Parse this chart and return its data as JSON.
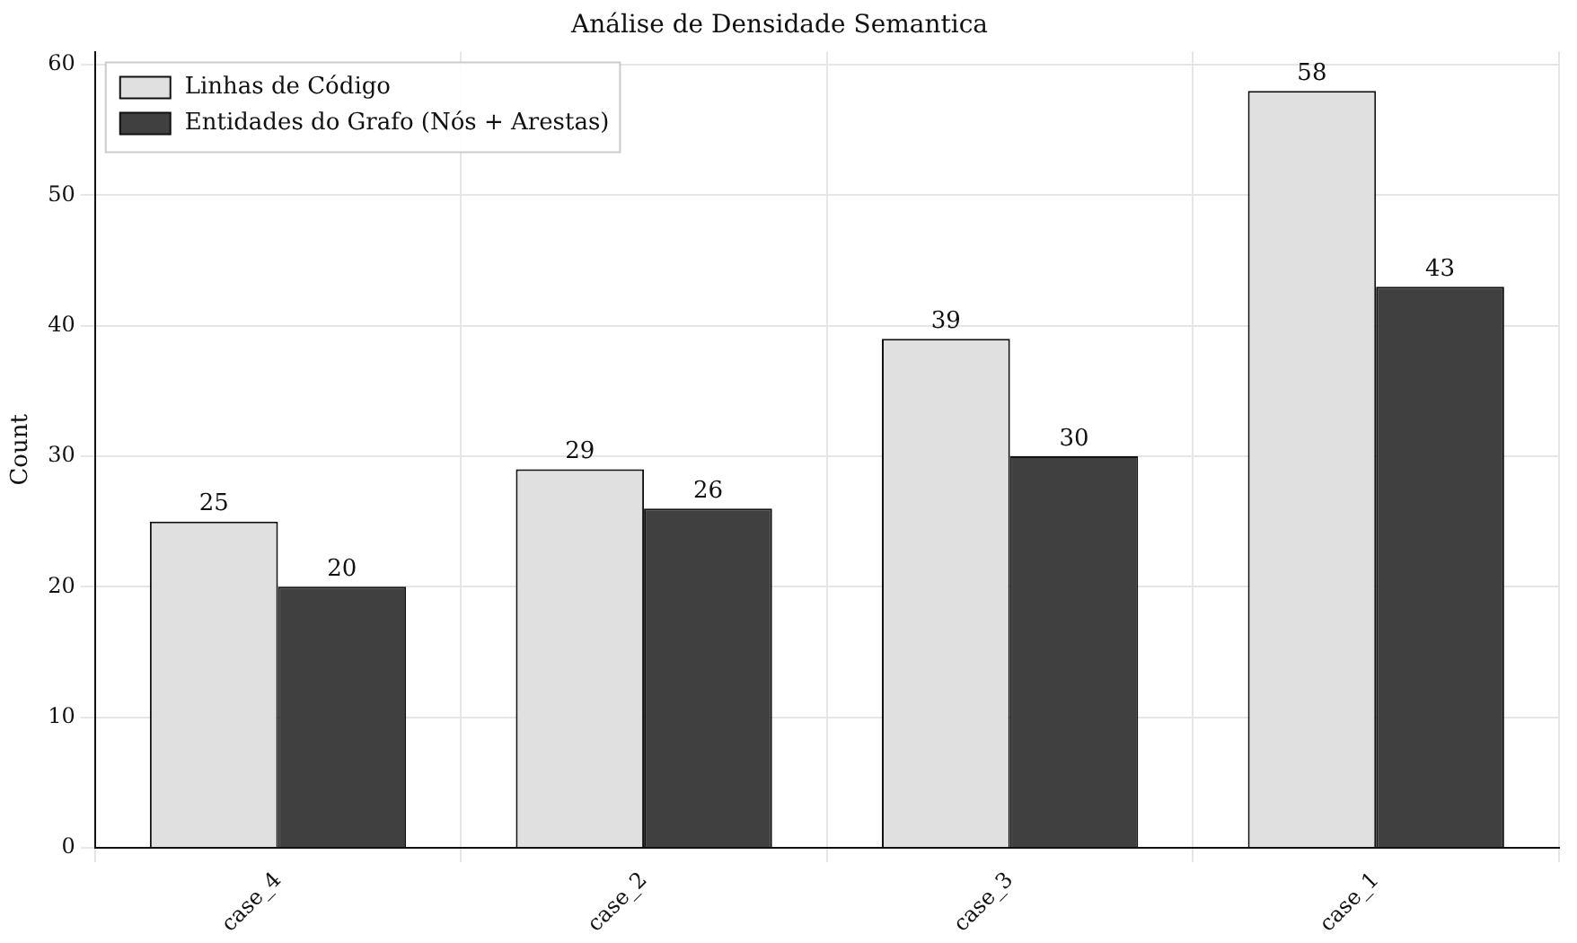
{
  "chart_data": {
    "type": "bar",
    "title": "Análise de Densidade Semantica",
    "ylabel": "Count",
    "categories": [
      "case_4",
      "case_2",
      "case_3",
      "case_1"
    ],
    "series": [
      {
        "name": "Linhas de Código",
        "color": "#e0e0e0",
        "values": [
          25,
          29,
          39,
          58
        ]
      },
      {
        "name": "Entidades do Grafo (Nós + Arestas)",
        "color": "#404040",
        "values": [
          20,
          26,
          30,
          43
        ]
      }
    ],
    "ylim": [
      0,
      61
    ],
    "yticks": [
      0,
      10,
      20,
      30,
      40,
      50,
      60
    ],
    "grid": true,
    "legend": "top left",
    "data_labels": true
  }
}
